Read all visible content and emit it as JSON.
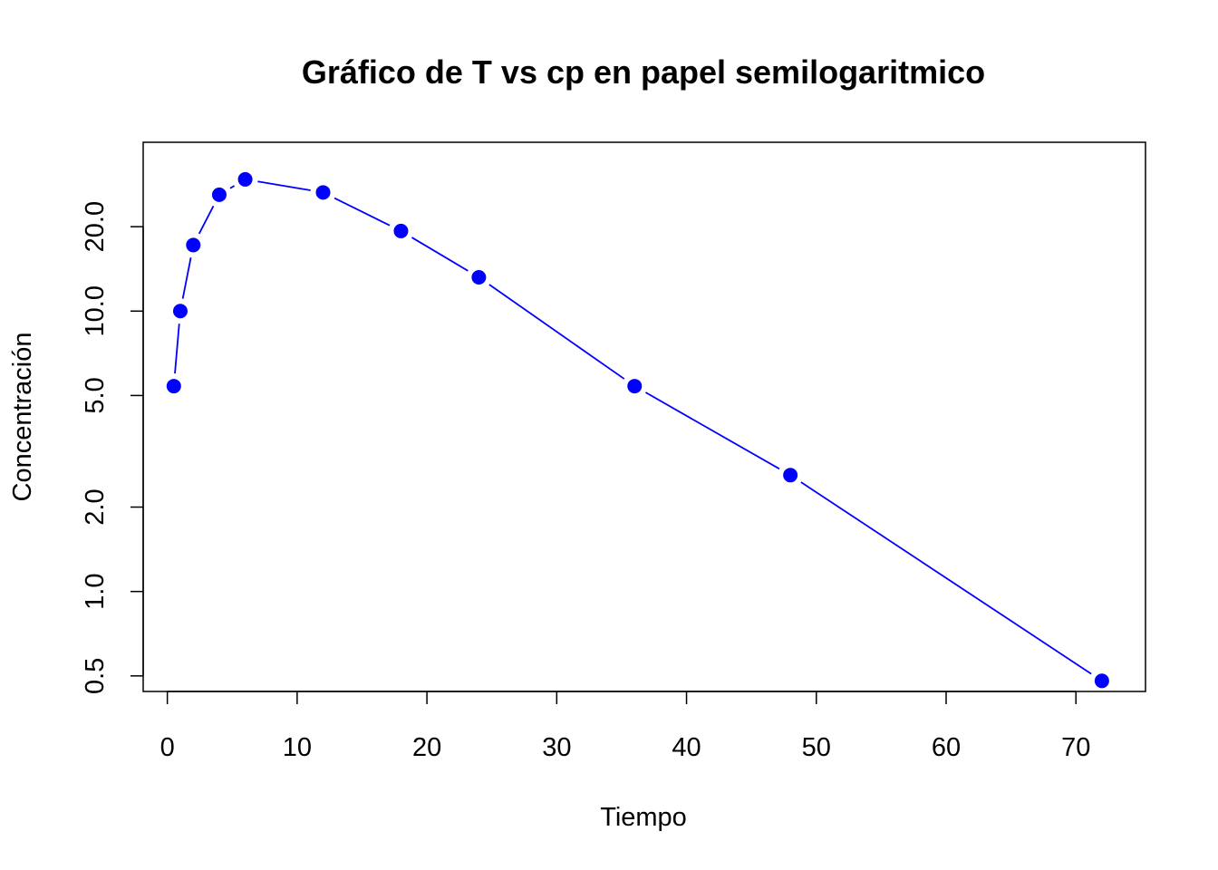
{
  "chart_data": {
    "type": "line",
    "title": "Gráfico de T vs cp en papel semilogaritmico",
    "xlabel": "Tiempo",
    "ylabel": "Concentración",
    "y_scale": "log",
    "xlim": [
      -1.86,
      75.36
    ],
    "ylim": [
      0.44,
      40
    ],
    "x_ticks": [
      0,
      10,
      20,
      30,
      40,
      50,
      60,
      70
    ],
    "x_tick_labels": [
      "0",
      "10",
      "20",
      "30",
      "40",
      "50",
      "60",
      "70"
    ],
    "y_ticks": [
      0.5,
      1.0,
      2.0,
      5.0,
      10.0,
      20.0
    ],
    "y_tick_labels": [
      "0.5",
      "1.0",
      "2.0",
      "5.0",
      "10.0",
      "20.0"
    ],
    "grid": false,
    "series": [
      {
        "color": "#0000ff",
        "marker": "filled-circle",
        "line_style": "overplotted (both)",
        "x": [
          0.5,
          1,
          2,
          4,
          6,
          12,
          18,
          24,
          36,
          48,
          72
        ],
        "y": [
          5.4,
          10.0,
          17.2,
          26.0,
          29.5,
          26.5,
          19.3,
          13.2,
          5.4,
          2.6,
          0.48
        ]
      }
    ]
  }
}
